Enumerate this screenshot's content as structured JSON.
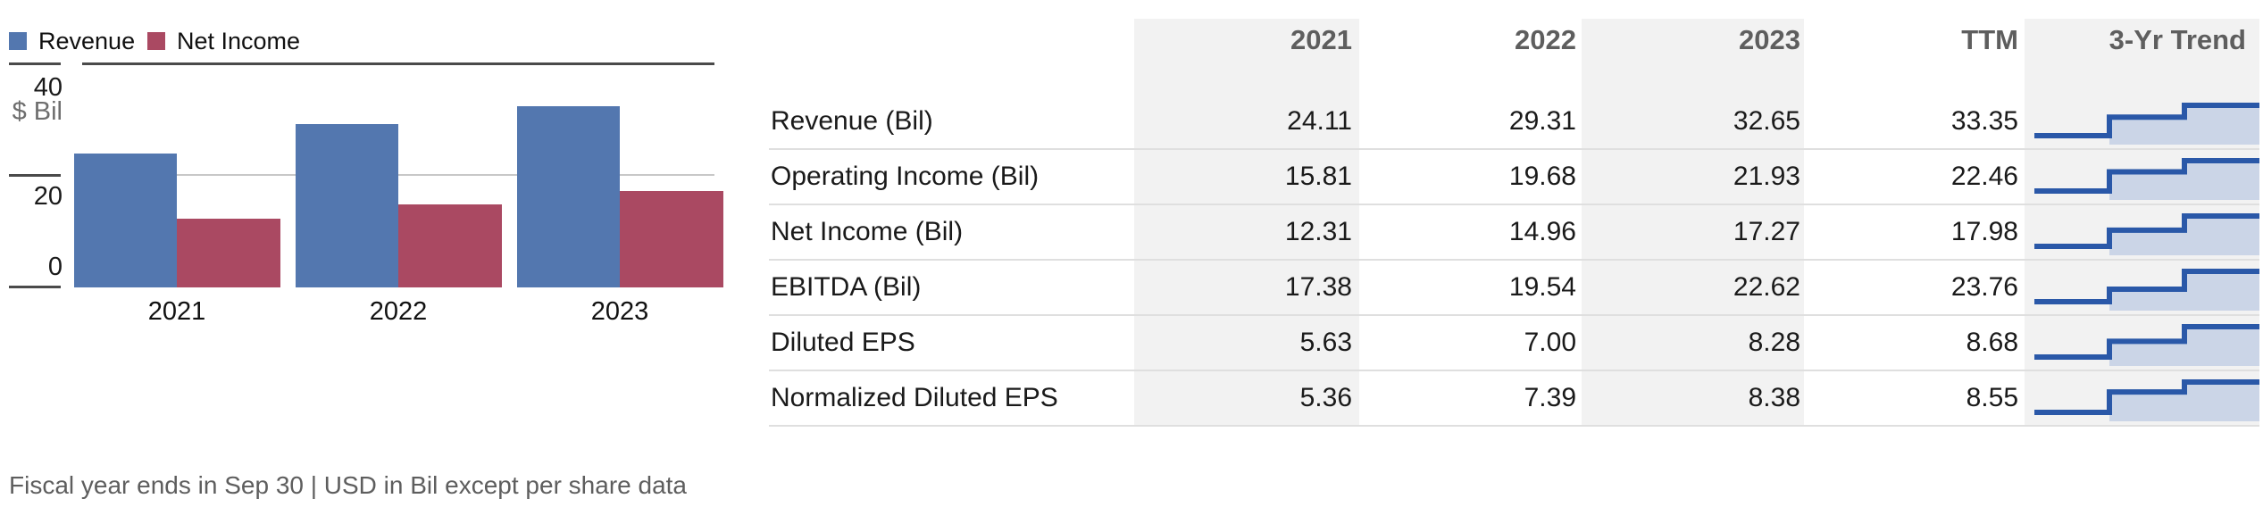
{
  "chart_data": {
    "type": "bar",
    "categories": [
      "2021",
      "2022",
      "2023"
    ],
    "series": [
      {
        "name": "Revenue",
        "color": "#5377AF",
        "values": [
          24.11,
          29.31,
          32.65
        ]
      },
      {
        "name": "Net Income",
        "color": "#AA4962",
        "values": [
          12.31,
          14.96,
          17.27
        ]
      }
    ],
    "ylabel": "$ Bil",
    "ylim": [
      0,
      40
    ],
    "yticks": [
      "0",
      "20",
      "40"
    ],
    "grid": "horizontal",
    "legend_position": "top-left"
  },
  "chart_axis": {
    "top_tick_label": "40",
    "unit_label": "$ Bil",
    "mid_tick_label": "20",
    "zero_tick_label": "0"
  },
  "table": {
    "columns": [
      "2021",
      "2022",
      "2023",
      "TTM",
      "3-Yr Trend"
    ],
    "rows": [
      {
        "label": "Revenue (Bil)",
        "values": [
          "24.11",
          "29.31",
          "32.65",
          "33.35"
        ]
      },
      {
        "label": "Operating Income (Bil)",
        "values": [
          "15.81",
          "19.68",
          "21.93",
          "22.46"
        ]
      },
      {
        "label": "Net Income (Bil)",
        "values": [
          "12.31",
          "14.96",
          "17.27",
          "17.98"
        ]
      },
      {
        "label": "EBITDA (Bil)",
        "values": [
          "17.38",
          "19.54",
          "22.62",
          "23.76"
        ]
      },
      {
        "label": "Diluted EPS",
        "values": [
          "5.63",
          "7.00",
          "8.28",
          "8.68"
        ]
      },
      {
        "label": "Normalized Diluted EPS",
        "values": [
          "5.36",
          "7.39",
          "8.38",
          "8.55"
        ]
      }
    ],
    "trend_colors": {
      "line": "#2A58A8",
      "fill": "#CBD5E7"
    }
  },
  "footer": {
    "text": "Fiscal year ends in Sep 30 | USD in Bil except per share data"
  }
}
